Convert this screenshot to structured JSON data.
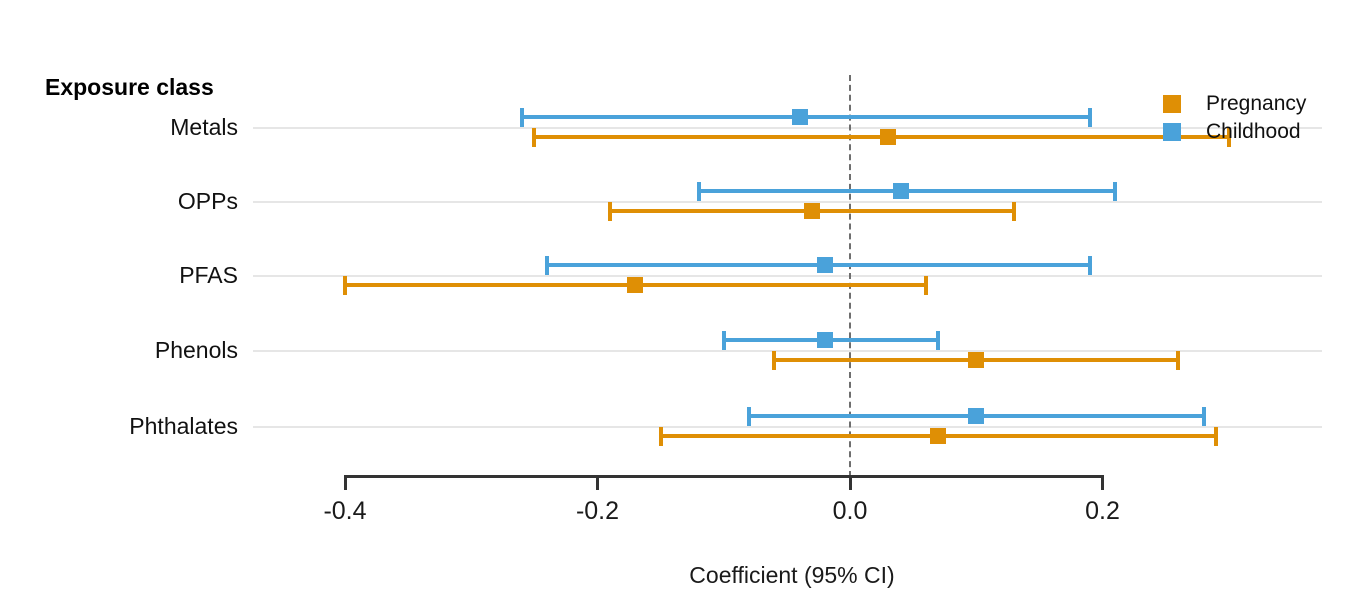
{
  "chart_data": {
    "type": "forest",
    "title": "Exposure class",
    "xlabel": "Coefficient (95% CI)",
    "xlim": [
      -0.4,
      0.2
    ],
    "x_ticks": [
      -0.4,
      -0.2,
      0.0,
      0.2
    ],
    "x_tick_labels": [
      "-0.4",
      "-0.2",
      "0.0",
      "0.2"
    ],
    "zero_line": 0.0,
    "grid": true,
    "legend_position": "top-right",
    "categories": [
      "Metals",
      "OPPs",
      "PFAS",
      "Phenols",
      "Phthalates"
    ],
    "series": [
      {
        "name": "Pregnancy",
        "color": "#DF8F05",
        "points": [
          {
            "category": "Metals",
            "estimate": 0.03,
            "ci_low": -0.25,
            "ci_high": 0.3
          },
          {
            "category": "OPPs",
            "estimate": -0.03,
            "ci_low": -0.19,
            "ci_high": 0.13
          },
          {
            "category": "PFAS",
            "estimate": -0.17,
            "ci_low": -0.4,
            "ci_high": 0.06
          },
          {
            "category": "Phenols",
            "estimate": 0.1,
            "ci_low": -0.06,
            "ci_high": 0.26
          },
          {
            "category": "Phthalates",
            "estimate": 0.07,
            "ci_low": -0.15,
            "ci_high": 0.29
          }
        ]
      },
      {
        "name": "Childhood",
        "color": "#4AA2DA",
        "points": [
          {
            "category": "Metals",
            "estimate": -0.04,
            "ci_low": -0.26,
            "ci_high": 0.19
          },
          {
            "category": "OPPs",
            "estimate": 0.04,
            "ci_low": -0.12,
            "ci_high": 0.21
          },
          {
            "category": "PFAS",
            "estimate": -0.02,
            "ci_low": -0.24,
            "ci_high": 0.19
          },
          {
            "category": "Phenols",
            "estimate": -0.02,
            "ci_low": -0.1,
            "ci_high": 0.07
          },
          {
            "category": "Phthalates",
            "estimate": 0.1,
            "ci_low": -0.08,
            "ci_high": 0.28
          }
        ]
      }
    ],
    "colors": {
      "pregnancy": "#DF8F05",
      "childhood": "#4AA2DA",
      "gridline": "#E6E6E6",
      "zero_line": "#6E6E6E",
      "axis": "#333333",
      "text": "#111111"
    }
  }
}
